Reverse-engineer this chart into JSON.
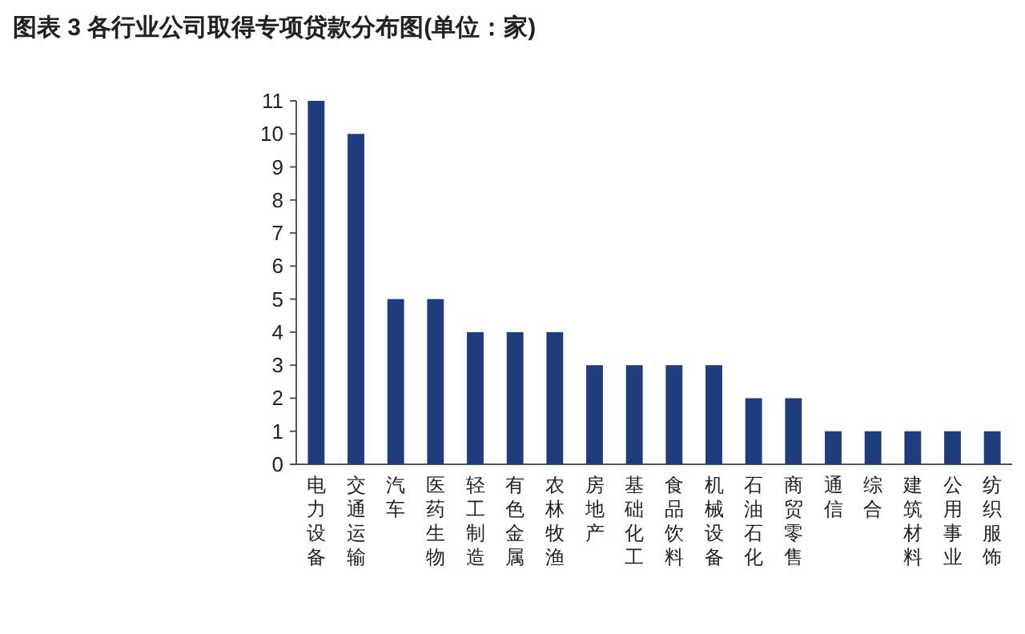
{
  "chart_data": {
    "type": "bar",
    "title": "图表 3   各行业公司取得专项贷款分布图(单位：家)",
    "categories": [
      "电力设备",
      "交通运输",
      "汽车",
      "医药生物",
      "轻工制造",
      "有色金属",
      "农林牧渔",
      "房地产",
      "基础化工",
      "食品饮料",
      "机械设备",
      "石油石化",
      "商贸零售",
      "通信",
      "综合",
      "建筑材料",
      "公用事业",
      "纺织服饰"
    ],
    "values": [
      11,
      10,
      5,
      5,
      4,
      4,
      4,
      3,
      3,
      3,
      3,
      2,
      2,
      1,
      1,
      1,
      1,
      1
    ],
    "color": "#1f3c7c",
    "ylim": [
      0,
      11
    ],
    "yticks": [
      0,
      1,
      2,
      3,
      4,
      5,
      6,
      7,
      8,
      9,
      10,
      11
    ]
  }
}
